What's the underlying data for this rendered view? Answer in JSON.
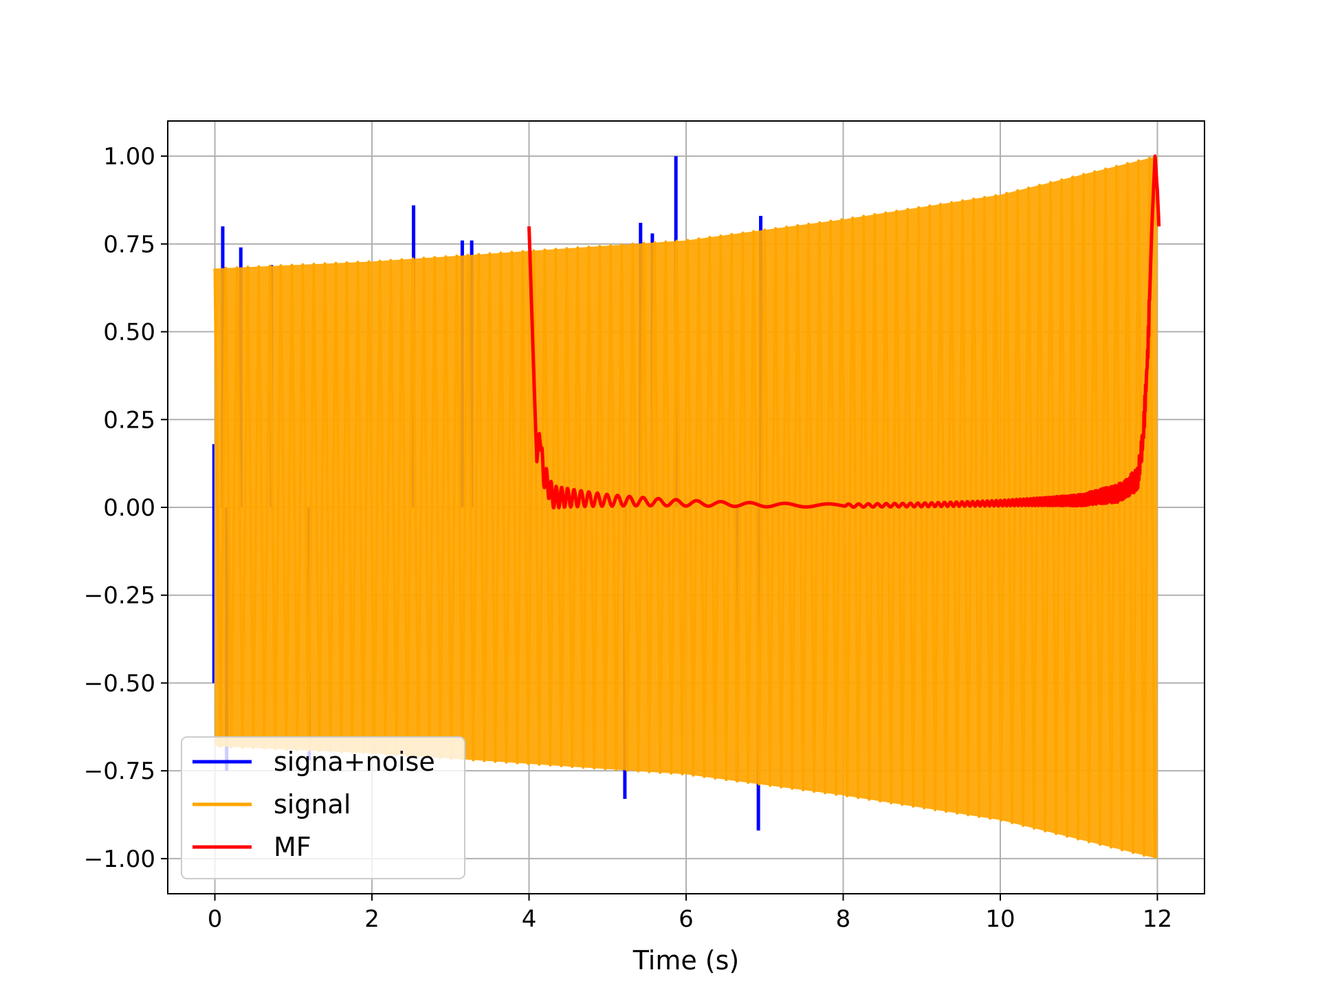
{
  "chart_data": {
    "type": "line",
    "title": "",
    "xlabel": "Time (s)",
    "ylabel": "",
    "xlim": [
      -0.6,
      12.6
    ],
    "ylim": [
      -1.1,
      1.1
    ],
    "xticks": [
      0,
      2,
      4,
      6,
      8,
      10,
      12
    ],
    "xtick_labels": [
      "0",
      "2",
      "4",
      "6",
      "8",
      "10",
      "12"
    ],
    "yticks": [
      1.0,
      0.75,
      0.5,
      0.25,
      0.0,
      -0.25,
      -0.5,
      -0.75,
      -1.0
    ],
    "ytick_labels": [
      "1.00",
      "0.75",
      "0.50",
      "0.25",
      "0.00",
      "−0.25",
      "−0.50",
      "−0.75",
      "−1.00"
    ],
    "grid": true,
    "legend_position": "lower-left",
    "series": [
      {
        "name": "signa+noise",
        "color": "#0000ff",
        "spikes": [
          {
            "x": 0.1,
            "y": 0.8
          },
          {
            "x": 0.33,
            "y": 0.74
          },
          {
            "x": 0.72,
            "y": 0.69
          },
          {
            "x": 2.53,
            "y": 0.86
          },
          {
            "x": 3.15,
            "y": 0.76
          },
          {
            "x": 3.27,
            "y": 0.76
          },
          {
            "x": 5.42,
            "y": 0.81
          },
          {
            "x": 5.57,
            "y": 0.78
          },
          {
            "x": 5.87,
            "y": 1.0
          },
          {
            "x": 6.95,
            "y": 0.83
          },
          {
            "x": 0.15,
            "y": -0.75
          },
          {
            "x": 1.2,
            "y": -0.72
          },
          {
            "x": 5.22,
            "y": -0.83
          },
          {
            "x": 6.65,
            "y": -0.78
          },
          {
            "x": 6.92,
            "y": -0.92
          }
        ]
      },
      {
        "name": "signal",
        "color": "#ffa500",
        "x_start": 0.0,
        "x_end": 12.0,
        "envelope": [
          {
            "x": 0,
            "y": 0.68
          },
          {
            "x": 2,
            "y": 0.7
          },
          {
            "x": 4,
            "y": 0.73
          },
          {
            "x": 6,
            "y": 0.76
          },
          {
            "x": 8,
            "y": 0.82
          },
          {
            "x": 10,
            "y": 0.89
          },
          {
            "x": 12,
            "y": 1.0
          }
        ]
      },
      {
        "name": "MF",
        "color": "#ff0000",
        "points": [
          {
            "x": 4.0,
            "y": 0.8
          },
          {
            "x": 4.05,
            "y": 0.45
          },
          {
            "x": 4.08,
            "y": 0.25
          },
          {
            "x": 4.1,
            "y": 0.13
          },
          {
            "x": 4.13,
            "y": 0.21
          },
          {
            "x": 4.18,
            "y": 0.1
          },
          {
            "x": 4.3,
            "y": 0.03
          },
          {
            "x": 5,
            "y": 0.02
          },
          {
            "x": 6,
            "y": 0.012
          },
          {
            "x": 7,
            "y": 0.007
          },
          {
            "x": 8,
            "y": 0.005
          },
          {
            "x": 9,
            "y": 0.007
          },
          {
            "x": 10,
            "y": 0.012
          },
          {
            "x": 11,
            "y": 0.02
          },
          {
            "x": 11.5,
            "y": 0.04
          },
          {
            "x": 11.75,
            "y": 0.08
          },
          {
            "x": 11.82,
            "y": 0.2
          },
          {
            "x": 11.88,
            "y": 0.45
          },
          {
            "x": 11.93,
            "y": 0.8
          },
          {
            "x": 11.97,
            "y": 1.0
          },
          {
            "x": 12.0,
            "y": 0.9
          },
          {
            "x": 12.02,
            "y": 0.8
          }
        ]
      }
    ]
  }
}
